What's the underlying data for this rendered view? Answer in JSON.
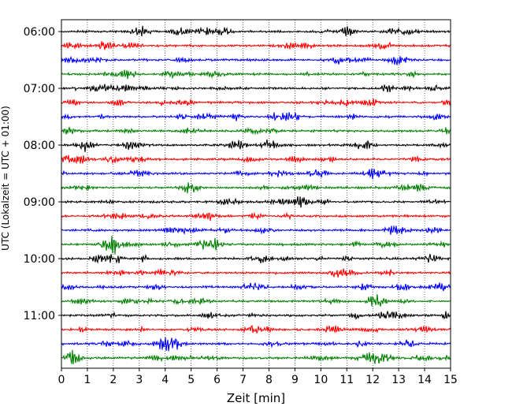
{
  "chart_data": {
    "type": "line",
    "title": "",
    "xlabel": "Zeit  [min]",
    "ylabel": "UTC (Lokalzeit = UTC + 01:00)",
    "xlim": [
      0,
      15
    ],
    "x_ticks": [
      0,
      1,
      2,
      3,
      4,
      5,
      6,
      7,
      8,
      9,
      10,
      11,
      12,
      13,
      14,
      15
    ],
    "y_tick_labels": [
      "06:00",
      "07:00",
      "08:00",
      "09:00",
      "10:00",
      "11:00"
    ],
    "grid": "vertical dotted at each minute",
    "trace_colors": [
      "#000000",
      "#ff0000",
      "#0000ff",
      "#008000"
    ],
    "traces": [
      {
        "start": "06:00",
        "color": "#000000"
      },
      {
        "start": "06:15",
        "color": "#ff0000"
      },
      {
        "start": "06:30",
        "color": "#0000ff"
      },
      {
        "start": "06:45",
        "color": "#008000"
      },
      {
        "start": "07:00",
        "color": "#000000"
      },
      {
        "start": "07:15",
        "color": "#ff0000"
      },
      {
        "start": "07:30",
        "color": "#0000ff"
      },
      {
        "start": "07:45",
        "color": "#008000"
      },
      {
        "start": "08:00",
        "color": "#000000"
      },
      {
        "start": "08:15",
        "color": "#ff0000"
      },
      {
        "start": "08:30",
        "color": "#0000ff"
      },
      {
        "start": "08:45",
        "color": "#008000"
      },
      {
        "start": "09:00",
        "color": "#000000"
      },
      {
        "start": "09:15",
        "color": "#ff0000"
      },
      {
        "start": "09:30",
        "color": "#0000ff"
      },
      {
        "start": "09:45",
        "color": "#008000"
      },
      {
        "start": "10:00",
        "color": "#000000"
      },
      {
        "start": "10:15",
        "color": "#ff0000"
      },
      {
        "start": "10:30",
        "color": "#0000ff"
      },
      {
        "start": "10:45",
        "color": "#008000"
      },
      {
        "start": "11:00",
        "color": "#000000"
      },
      {
        "start": "11:15",
        "color": "#ff0000"
      },
      {
        "start": "11:30",
        "color": "#0000ff"
      },
      {
        "start": "11:45",
        "color": "#008000"
      }
    ]
  }
}
